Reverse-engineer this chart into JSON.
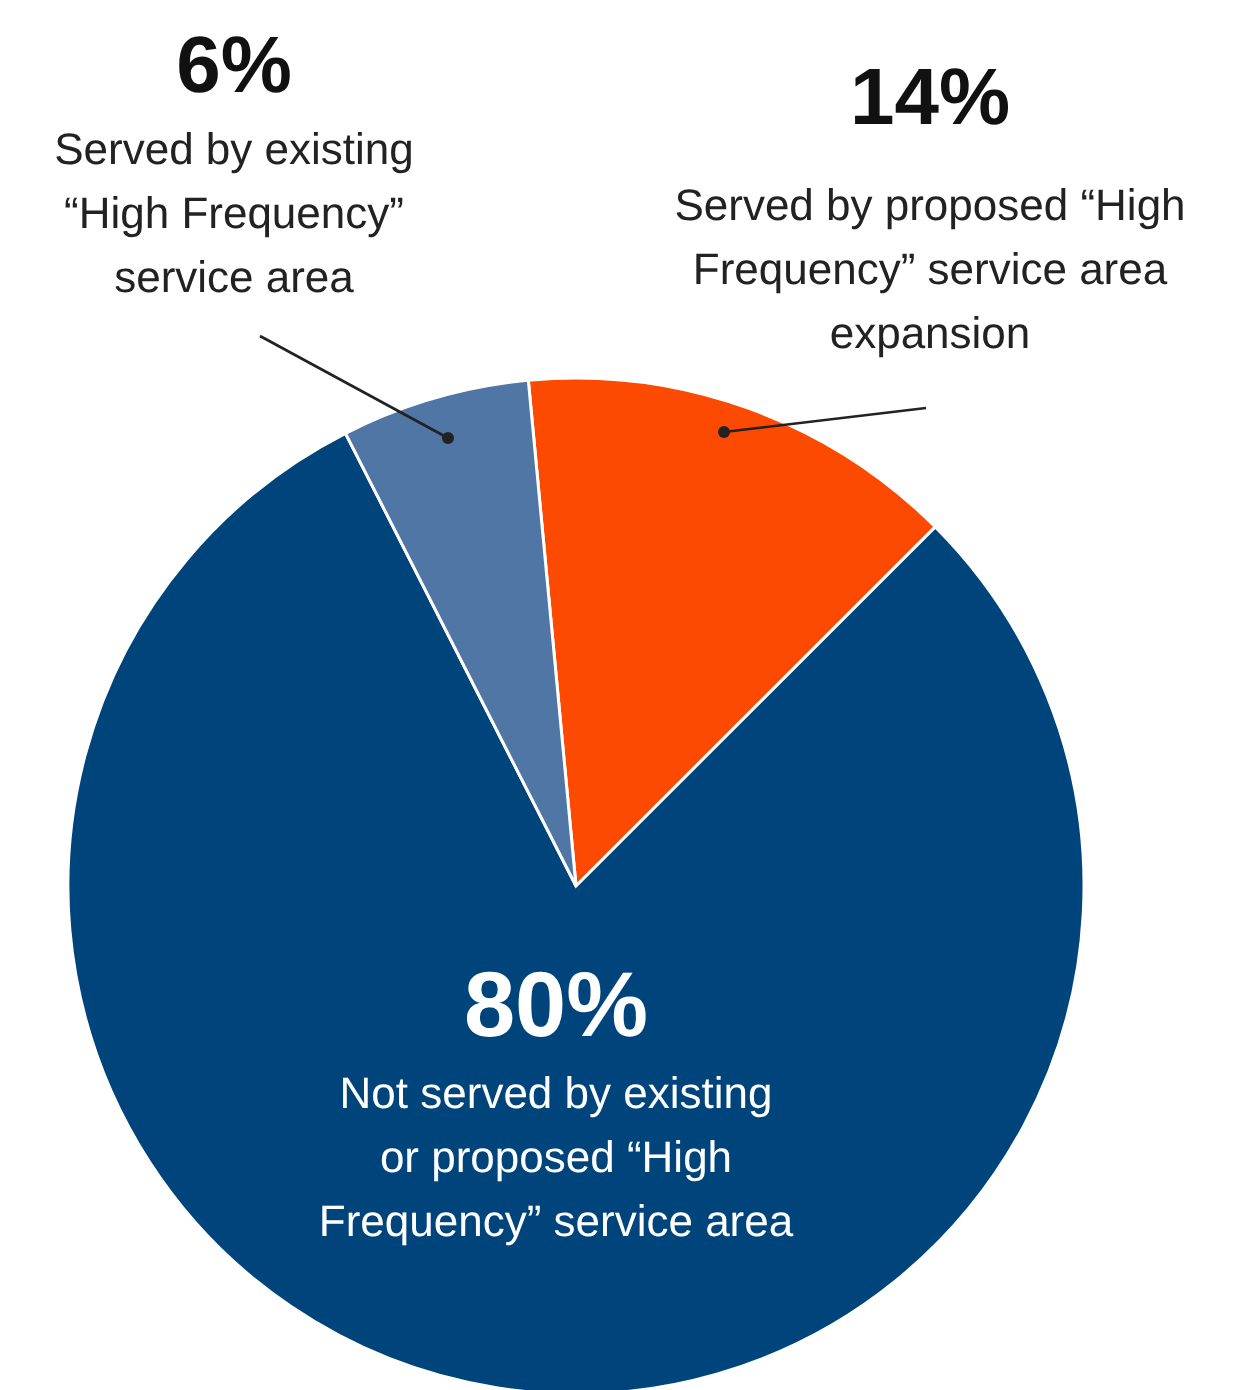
{
  "chart_data": {
    "type": "pie",
    "categories": [
      "Served by proposed “High Frequency” service area expansion",
      "Not served by existing or proposed “High Frequency” service area",
      "Served by existing “High Frequency” service area"
    ],
    "values": [
      14,
      80,
      6
    ],
    "colors": [
      "#fc4a02",
      "#00447c",
      "#4f76a4"
    ],
    "value_labels": [
      "14%",
      "80%",
      "6%"
    ]
  }
}
